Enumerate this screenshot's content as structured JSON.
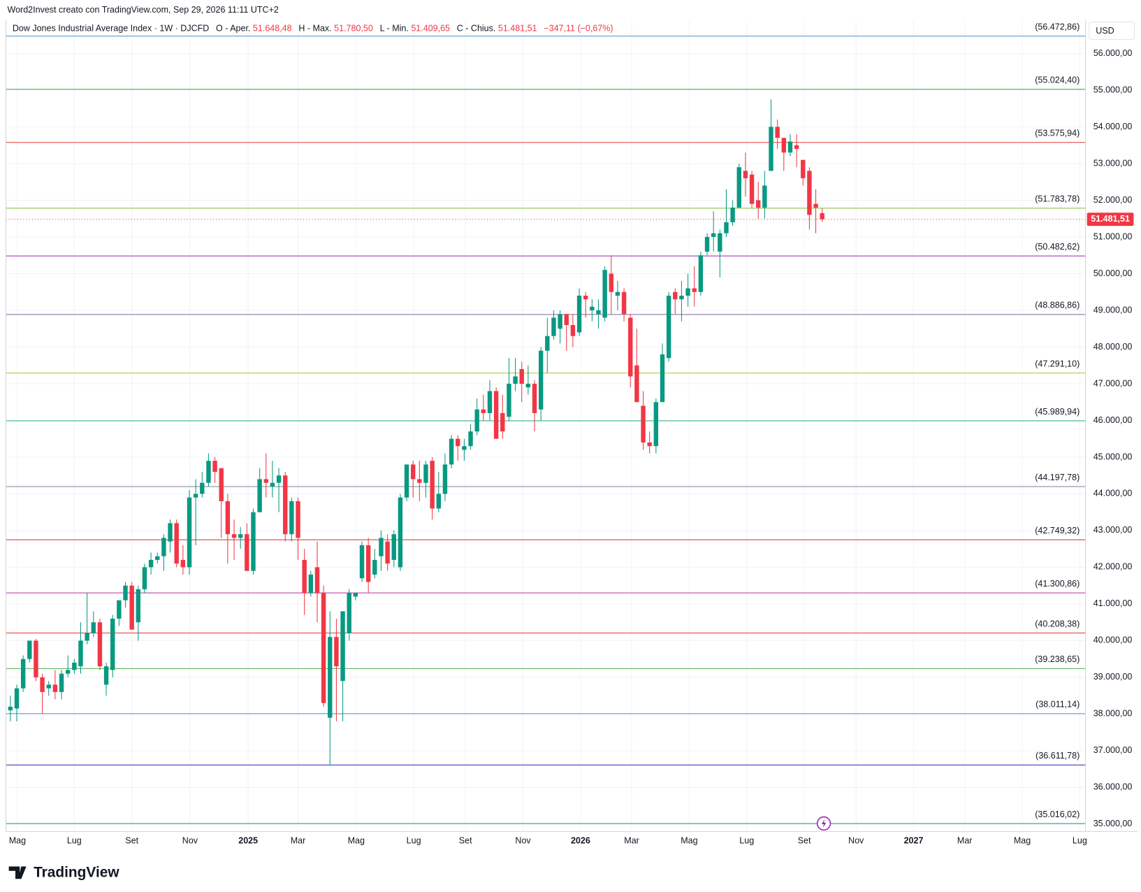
{
  "header": {
    "credit": "Word2Invest creato con TradingView.com, Sep 29, 2026 11:11 UTC+2"
  },
  "currency": "USD",
  "logo": "TradingView",
  "chart_data": {
    "type": "candlestick",
    "title": "Dow Jones Industrial Average Index · 1W · DJCFD",
    "legend": {
      "o_text": "O - Aper.",
      "o_value": "51.648,48",
      "h_text": "H - Max.",
      "h_value": "51.780,50",
      "l_text": "L - Min.",
      "l_value": "51.409,65",
      "c_text": "C - Chius.",
      "c_value": "51.481,51",
      "change": "−347,11 (−0,67%)"
    },
    "up_color": "#089981",
    "down_color": "#f23645",
    "open": [
      38100,
      38150,
      38700,
      39500,
      40000,
      39000,
      38700,
      38800,
      38600,
      39100,
      39200,
      39300,
      40000,
      40200,
      40500,
      38800,
      39200,
      40600,
      41100,
      41500,
      40500,
      41400,
      42000,
      42200,
      42300,
      42700,
      43200,
      42200,
      42000,
      43900,
      44000,
      44300,
      44900,
      44700,
      43800,
      42900,
      42800,
      42900,
      41900,
      43500,
      44400,
      44200,
      44300,
      44500,
      42900,
      43800,
      42200,
      41300,
      42000,
      41300,
      37900,
      40100,
      38900,
      40200,
      41200,
      41700,
      42600,
      41800,
      42300,
      42700,
      42200,
      42000,
      43900,
      44800,
      44400,
      44300,
      44900,
      43600,
      44000,
      44800,
      45500,
      45200,
      45300,
      45700,
      46300,
      46200,
      46800,
      46200,
      46100,
      47000,
      47400,
      46900,
      47000,
      46300,
      47900,
      48300,
      48500,
      48900,
      48600,
      48400,
      49400,
      49000,
      48900,
      48800,
      50000,
      49400,
      49500,
      48800,
      47500,
      46400,
      45400,
      45300,
      46500,
      47700,
      49500,
      49300,
      49400,
      49600,
      49500,
      50600,
      51000,
      50600,
      51100,
      51400,
      51800,
      52800,
      52700,
      52000,
      51800,
      52800,
      54000,
      53700,
      53300,
      53500,
      53100,
      52800,
      51900,
      51648.48
    ],
    "high": [
      38500,
      38800,
      39600,
      40000,
      40050,
      39100,
      38900,
      39200,
      39200,
      39600,
      39500,
      40500,
      41300,
      40800,
      40600,
      39400,
      40700,
      41100,
      41600,
      41600,
      41500,
      42100,
      42400,
      42400,
      42900,
      43300,
      43300,
      42600,
      44100,
      44400,
      44600,
      45100,
      45000,
      44700,
      44000,
      43300,
      43100,
      43200,
      43600,
      44700,
      45100,
      44900,
      44700,
      44600,
      43900,
      43900,
      42500,
      41900,
      42700,
      41500,
      40800,
      40600,
      40800,
      41400,
      41300,
      42700,
      42800,
      42500,
      43000,
      42900,
      43000,
      44000,
      44800,
      44900,
      44900,
      44900,
      45000,
      44600,
      45100,
      45600,
      45600,
      45500,
      45900,
      46600,
      46700,
      47100,
      46900,
      46700,
      47700,
      47700,
      47600,
      47500,
      47100,
      48000,
      48800,
      49000,
      49000,
      48900,
      48900,
      49600,
      49500,
      49300,
      49300,
      50200,
      50500,
      49800,
      49600,
      48900,
      48500,
      46800,
      45700,
      46600,
      48100,
      49500,
      49600,
      49800,
      50000,
      50200,
      50600,
      51100,
      51700,
      51200,
      52300,
      52000,
      53000,
      53300,
      52800,
      52500,
      52800,
      54750,
      54200,
      53700,
      53800,
      53800,
      53100,
      52900,
      52300,
      51780.5
    ],
    "low": [
      37800,
      37800,
      38600,
      39400,
      38900,
      38000,
      38500,
      38400,
      38400,
      39000,
      39100,
      39100,
      39900,
      40100,
      39200,
      38500,
      39000,
      40400,
      40900,
      40300,
      40000,
      41300,
      41800,
      42100,
      41900,
      42400,
      42000,
      41800,
      41800,
      42600,
      43900,
      44200,
      44300,
      42800,
      42100,
      42200,
      42500,
      41900,
      41800,
      43500,
      43900,
      43900,
      43500,
      42700,
      42700,
      42200,
      40700,
      41200,
      40500,
      38200,
      36610,
      37800,
      37800,
      40000,
      41100,
      41600,
      41300,
      41700,
      41900,
      41900,
      42000,
      41900,
      43800,
      43900,
      43800,
      43900,
      43300,
      43500,
      43800,
      44700,
      44900,
      44900,
      45200,
      45600,
      46000,
      46000,
      45500,
      45500,
      46000,
      46800,
      46500,
      46700,
      45700,
      46000,
      47300,
      48200,
      48100,
      47900,
      48000,
      48300,
      48800,
      48700,
      48500,
      48700,
      48900,
      49000,
      48700,
      46900,
      46500,
      45200,
      45100,
      45100,
      46500,
      47600,
      48900,
      48700,
      49100,
      49100,
      49400,
      50500,
      50600,
      49900,
      51000,
      51300,
      51800,
      52100,
      51800,
      51500,
      51500,
      52800,
      53400,
      52800,
      53200,
      52900,
      52400,
      51200,
      51100,
      51409.65
    ],
    "close": [
      38200,
      38700,
      39500,
      40000,
      39000,
      38600,
      38800,
      38600,
      39100,
      39200,
      39400,
      40000,
      40200,
      40500,
      39300,
      39300,
      40600,
      41100,
      41500,
      40300,
      41400,
      42000,
      42200,
      42300,
      42800,
      43200,
      42100,
      42000,
      43900,
      44000,
      44300,
      44900,
      44600,
      43800,
      42900,
      42800,
      42900,
      41900,
      43500,
      44400,
      44300,
      44300,
      44500,
      42900,
      43800,
      42800,
      41300,
      41800,
      41300,
      38300,
      40100,
      39300,
      40800,
      41300,
      41300,
      42600,
      41600,
      42200,
      42800,
      42100,
      42900,
      43900,
      44800,
      44400,
      44300,
      44800,
      43600,
      44000,
      44800,
      45500,
      45300,
      45300,
      45700,
      46300,
      46200,
      46800,
      45500,
      45700,
      47000,
      47200,
      47000,
      47000,
      46200,
      47900,
      48300,
      48800,
      48900,
      48600,
      48300,
      49400,
      49300,
      49100,
      49000,
      50100,
      49500,
      49500,
      48900,
      47200,
      46500,
      45400,
      45300,
      46500,
      47800,
      49400,
      49300,
      49400,
      49600,
      49500,
      50500,
      51000,
      51100,
      51100,
      51400,
      51800,
      52900,
      52600,
      51900,
      51800,
      52400,
      54000,
      53700,
      53300,
      53600,
      53400,
      52600,
      51600,
      51800,
      51481.51
    ],
    "xlim": [
      -0.7,
      168.2
    ],
    "xticks": [
      {
        "value": 1.1,
        "label": "Mag"
      },
      {
        "value": 10.0,
        "label": "Lug"
      },
      {
        "value": 19.0,
        "label": "Set"
      },
      {
        "value": 28.1,
        "label": "Nov"
      },
      {
        "value": 37.2,
        "label": "2025"
      },
      {
        "value": 45.0,
        "label": "Mar"
      },
      {
        "value": 54.1,
        "label": "Mag"
      },
      {
        "value": 63.1,
        "label": "Lug"
      },
      {
        "value": 71.2,
        "label": "Set"
      },
      {
        "value": 80.2,
        "label": "Nov"
      },
      {
        "value": 89.2,
        "label": "2026"
      },
      {
        "value": 97.2,
        "label": "Mar"
      },
      {
        "value": 106.2,
        "label": "Mag"
      },
      {
        "value": 115.2,
        "label": "Lug"
      },
      {
        "value": 124.2,
        "label": "Set"
      },
      {
        "value": 132.3,
        "label": "Nov"
      },
      {
        "value": 141.3,
        "label": "2027"
      },
      {
        "value": 149.3,
        "label": "Mar"
      },
      {
        "value": 158.3,
        "label": "Mag"
      },
      {
        "value": 167.3,
        "label": "Lug"
      }
    ],
    "ylim": [
      34840,
      56900
    ],
    "yticks": [
      {
        "value": 35000,
        "label": "35.000,00"
      },
      {
        "value": 36000,
        "label": "36.000,00"
      },
      {
        "value": 37000,
        "label": "37.000,00"
      },
      {
        "value": 38000,
        "label": "38.000,00"
      },
      {
        "value": 39000,
        "label": "39.000,00"
      },
      {
        "value": 40000,
        "label": "40.000,00"
      },
      {
        "value": 41000,
        "label": "41.000,00"
      },
      {
        "value": 42000,
        "label": "42.000,00"
      },
      {
        "value": 43000,
        "label": "43.000,00"
      },
      {
        "value": 44000,
        "label": "44.000,00"
      },
      {
        "value": 45000,
        "label": "45.000,00"
      },
      {
        "value": 46000,
        "label": "46.000,00"
      },
      {
        "value": 47000,
        "label": "47.000,00"
      },
      {
        "value": 48000,
        "label": "48.000,00"
      },
      {
        "value": 49000,
        "label": "49.000,00"
      },
      {
        "value": 50000,
        "label": "50.000,00"
      },
      {
        "value": 51000,
        "label": "51.000,00"
      },
      {
        "value": 52000,
        "label": "52.000,00"
      },
      {
        "value": 53000,
        "label": "53.000,00"
      },
      {
        "value": 54000,
        "label": "54.000,00"
      },
      {
        "value": 55000,
        "label": "55.000,00"
      },
      {
        "value": 56000,
        "label": "56.000,00"
      }
    ],
    "grid": true,
    "levels": [
      {
        "value": 56472.86,
        "label": "(56.472,86)",
        "color": "#4a90c8"
      },
      {
        "value": 55024.4,
        "label": "(55.024,40)",
        "color": "#4caf50"
      },
      {
        "value": 53575.94,
        "label": "(53.575,94)",
        "color": "#e53935"
      },
      {
        "value": 51783.78,
        "label": "(51.783,78)",
        "color": "#8bc34a"
      },
      {
        "value": 50482.62,
        "label": "(50.482,62)",
        "color": "#9c27b0"
      },
      {
        "value": 48886.86,
        "label": "(48.886,86)",
        "color": "#7a6b9b"
      },
      {
        "value": 47291.1,
        "label": "(47.291,10)",
        "color": "#a5c93a"
      },
      {
        "value": 45989.94,
        "label": "(45.989,94)",
        "color": "#26b07a"
      },
      {
        "value": 44197.78,
        "label": "(44.197,78)",
        "color": "#8a8fa0"
      },
      {
        "value": 42749.32,
        "label": "(42.749,32)",
        "color": "#d32f2f"
      },
      {
        "value": 41300.86,
        "label": "(41.300,86)",
        "color": "#b0309a"
      },
      {
        "value": 40208.38,
        "label": "(40.208,38)",
        "color": "#e53935"
      },
      {
        "value": 39238.65,
        "label": "(39.238,65)",
        "color": "#4caf50"
      },
      {
        "value": 38011.14,
        "label": "(38.011,14)",
        "color": "#4a90c8"
      },
      {
        "value": 36611.78,
        "label": "(36.611,78)",
        "color": "#3f3fc0"
      },
      {
        "value": 35016.02,
        "label": "(35.016,02)",
        "color": "#26a69a"
      }
    ],
    "last_price": {
      "value": 51481.51,
      "label": "51.481,51",
      "color": "#f23645"
    }
  }
}
